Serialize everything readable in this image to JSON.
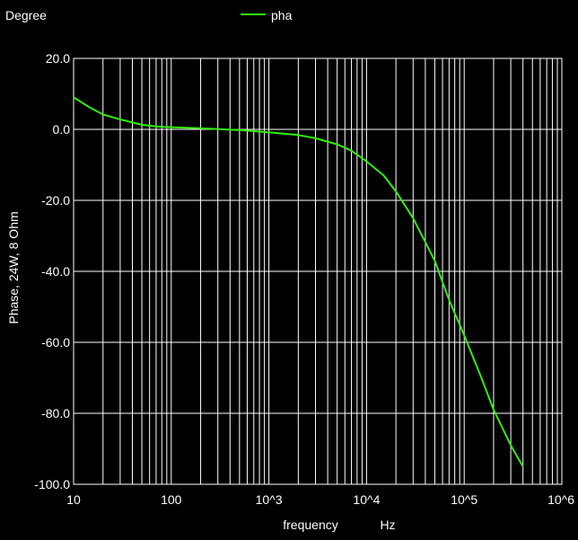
{
  "chart_data": {
    "type": "line",
    "y_unit_label": "Degree",
    "ylabel": "Phase, 24W, 8 Ohm",
    "xlabel": "frequency",
    "x_unit_label": "Hz",
    "x_scale": "log",
    "xlim": [
      10,
      1000000
    ],
    "ylim": [
      -100,
      20
    ],
    "grid": true,
    "legend_position": "top-center",
    "x_tick_labels": [
      "10",
      "100",
      "10^3",
      "10^4",
      "10^5",
      "10^6"
    ],
    "y_tick_labels": [
      "20.0",
      "0.0",
      "-20.0",
      "-40.0",
      "-60.0",
      "-80.0",
      "-100.0"
    ],
    "y_ticks": [
      20,
      0,
      -20,
      -40,
      -60,
      -80,
      -100
    ],
    "x_ticks": [
      10,
      100,
      1000,
      10000,
      100000,
      1000000
    ],
    "series": [
      {
        "name": "pha",
        "color": "#33ee11",
        "x": [
          10,
          15,
          20,
          30,
          50,
          70,
          100,
          200,
          500,
          1000,
          2000,
          3000,
          5000,
          7000,
          10000,
          15000,
          20000,
          30000,
          50000,
          70000,
          100000,
          150000,
          200000,
          300000,
          400000
        ],
        "y": [
          9,
          6,
          4.2,
          2.8,
          1.3,
          0.8,
          0.6,
          0.3,
          -0.2,
          -0.8,
          -1.6,
          -2.5,
          -4.2,
          -6,
          -9,
          -13,
          -17.5,
          -25,
          -37,
          -48,
          -58,
          -70,
          -79,
          -89,
          -95
        ]
      }
    ]
  }
}
